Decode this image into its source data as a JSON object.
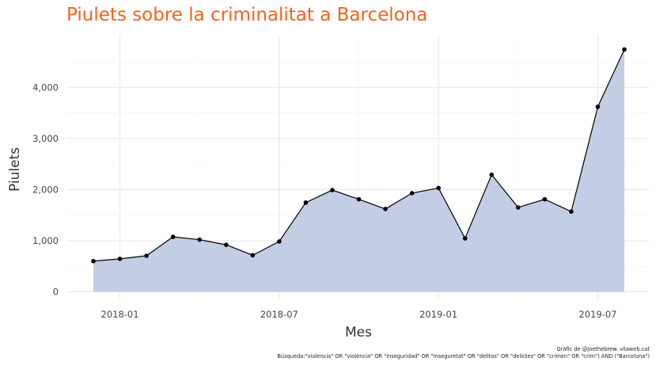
{
  "chart_data": {
    "type": "area",
    "title": "Piulets sobre la criminalitat a Barcelona",
    "xlabel": "Mes",
    "ylabel": "Piulets",
    "x": [
      "2017-12",
      "2018-01",
      "2018-02",
      "2018-03",
      "2018-04",
      "2018-05",
      "2018-06",
      "2018-07",
      "2018-08",
      "2018-09",
      "2018-10",
      "2018-11",
      "2018-12",
      "2019-01",
      "2019-02",
      "2019-03",
      "2019-04",
      "2019-05",
      "2019-06",
      "2019-07",
      "2019-08"
    ],
    "values": [
      600,
      645,
      705,
      1075,
      1020,
      920,
      715,
      985,
      1745,
      1990,
      1810,
      1620,
      1930,
      2030,
      1045,
      2290,
      1650,
      1810,
      1570,
      3620,
      4740
    ],
    "x_ticks": [
      "2018-01",
      "2018-07",
      "2019-01",
      "2019-07"
    ],
    "y_ticks": [
      "0",
      "1,000",
      "2,000",
      "3,000",
      "4,000"
    ],
    "ylim": [
      0,
      4900
    ],
    "grid": true,
    "colors": {
      "title": "#f4621f",
      "area": "#c2cde3",
      "line": "#000000",
      "grid": "#e6e6e6"
    }
  },
  "caption": {
    "credit": "Gràfic de @joethebrew. vilaweb.cat",
    "query": "Búsqueda:\"violencia\" OR \"violència\" OR \"inseguridad\" OR \"inseguretat\" OR \"delitos\" OR \"delictes\" OR \"crimen\" OR \"crim\") AND (\"Barcelona\")"
  }
}
